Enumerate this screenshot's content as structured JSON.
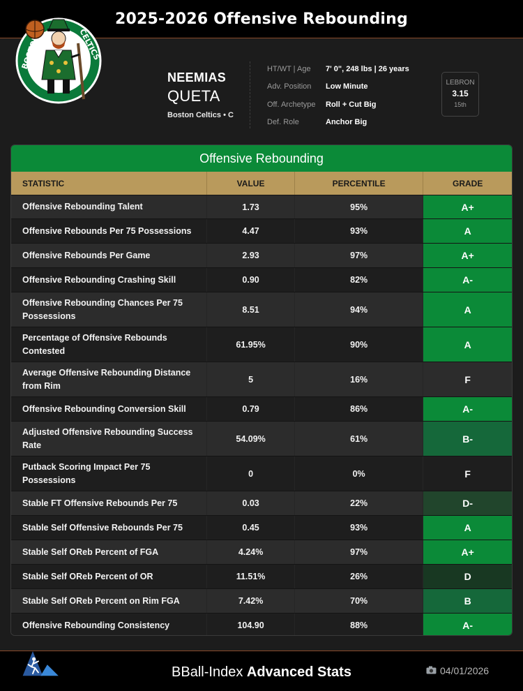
{
  "page": {
    "title": "2025-2026 Offensive Rebounding"
  },
  "player": {
    "first_name": "NEEMIAS",
    "last_name": "QUETA",
    "team_line": "Boston Celtics • C",
    "logo_icon": "celtics-leprechaun-logo"
  },
  "info": [
    {
      "label": "HT/WT | Age",
      "value": "7' 0\", 248 lbs | 26 years"
    },
    {
      "label": "Adv. Position",
      "value": "Low Minute"
    },
    {
      "label": "Off. Archetype",
      "value": "Roll + Cut Big"
    },
    {
      "label": "Def. Role",
      "value": "Anchor Big"
    }
  ],
  "lebron": {
    "label": "LEBRON",
    "value": "3.15",
    "rank": "15th"
  },
  "table": {
    "title": "Offensive Rebounding",
    "headers": {
      "statistic": "STATISTIC",
      "value": "VALUE",
      "percentile": "PERCENTILE",
      "grade": "GRADE"
    },
    "grade_colors": {
      "A+": "#0b8a38",
      "A": "#0b8a38",
      "A-": "#0b8a38",
      "B": "#15683a",
      "B-": "#15683a",
      "D-": "#21452c",
      "D": "#183822",
      "F": "transparent"
    },
    "rows": [
      {
        "stat": "Offensive Rebounding Talent",
        "value": "1.73",
        "percentile": "95%",
        "grade": "A+"
      },
      {
        "stat": "Offensive Rebounds Per 75 Possessions",
        "value": "4.47",
        "percentile": "93%",
        "grade": "A"
      },
      {
        "stat": "Offensive Rebounds Per Game",
        "value": "2.93",
        "percentile": "97%",
        "grade": "A+"
      },
      {
        "stat": "Offensive Rebounding Crashing Skill",
        "value": "0.90",
        "percentile": "82%",
        "grade": "A-"
      },
      {
        "stat": "Offensive Rebounding Chances Per 75 Possessions",
        "value": "8.51",
        "percentile": "94%",
        "grade": "A"
      },
      {
        "stat": "Percentage of Offensive Rebounds Contested",
        "value": "61.95%",
        "percentile": "90%",
        "grade": "A"
      },
      {
        "stat": "Average Offensive Rebounding Distance from Rim",
        "value": "5",
        "percentile": "16%",
        "grade": "F"
      },
      {
        "stat": "Offensive Rebounding Conversion Skill",
        "value": "0.79",
        "percentile": "86%",
        "grade": "A-"
      },
      {
        "stat": "Adjusted Offensive Rebounding Success Rate",
        "value": "54.09%",
        "percentile": "61%",
        "grade": "B-"
      },
      {
        "stat": "Putback Scoring Impact Per 75 Possessions",
        "value": "0",
        "percentile": "0%",
        "grade": "F"
      },
      {
        "stat": "Stable FT Offensive Rebounds Per 75",
        "value": "0.03",
        "percentile": "22%",
        "grade": "D-"
      },
      {
        "stat": "Stable Self Offensive Rebounds Per 75",
        "value": "0.45",
        "percentile": "93%",
        "grade": "A"
      },
      {
        "stat": "Stable Self OReb Percent of FGA",
        "value": "4.24%",
        "percentile": "97%",
        "grade": "A+"
      },
      {
        "stat": "Stable Self OReb Percent of OR",
        "value": "11.51%",
        "percentile": "26%",
        "grade": "D"
      },
      {
        "stat": "Stable Self OReb Percent on Rim FGA",
        "value": "7.42%",
        "percentile": "70%",
        "grade": "B"
      },
      {
        "stat": "Offensive Rebounding Consistency",
        "value": "104.90",
        "percentile": "88%",
        "grade": "A-"
      }
    ]
  },
  "footer": {
    "brand_regular": "BBall-Index",
    "brand_bold": "Advanced Stats",
    "date": "04/01/2026",
    "date_icon": "camera-icon",
    "logo_icon": "bball-index-logo"
  }
}
